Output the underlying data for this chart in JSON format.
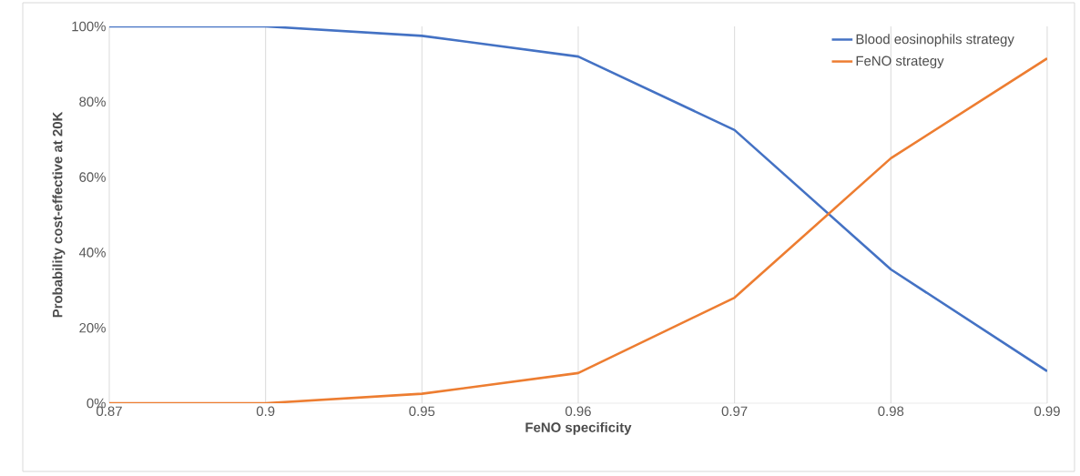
{
  "chart_data": {
    "type": "line",
    "xlabel": "FeNO specificity",
    "ylabel": "Probability cost-effective at 20K",
    "categories": [
      "0.87",
      "0.9",
      "0.95",
      "0.96",
      "0.97",
      "0.98",
      "0.99"
    ],
    "series": [
      {
        "name": "Blood eosinophils strategy",
        "color": "#4472c4",
        "values": [
          100,
          100,
          97.5,
          92,
          72.5,
          35.5,
          8.5
        ]
      },
      {
        "name": "FeNO strategy",
        "color": "#ed7d31",
        "values": [
          0,
          0,
          2.5,
          8,
          28,
          65,
          91.5
        ]
      }
    ],
    "ylim": [
      0,
      100
    ],
    "yticks": [
      {
        "value": 0,
        "label": "0%"
      },
      {
        "value": 20,
        "label": "20%"
      },
      {
        "value": 40,
        "label": "40%"
      },
      {
        "value": 60,
        "label": "60%"
      },
      {
        "value": 80,
        "label": "80%"
      },
      {
        "value": 100,
        "label": "100%"
      }
    ],
    "grid": "x",
    "legend": "top right",
    "marker": "none",
    "line_style": "solid"
  }
}
